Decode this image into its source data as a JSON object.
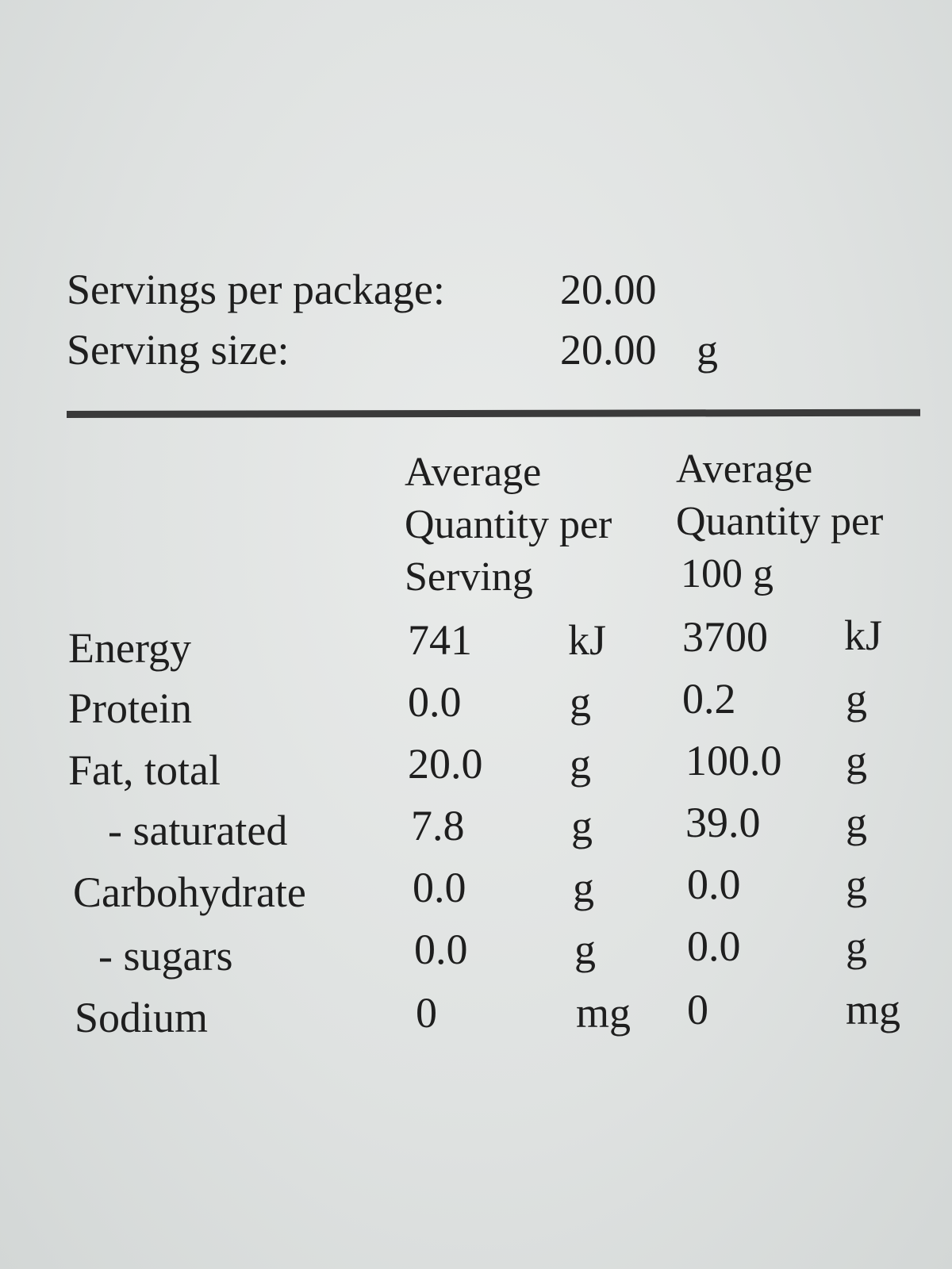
{
  "serving_info": {
    "servings_per_package_label": "Servings per package:",
    "servings_per_package_value": "20.00",
    "serving_size_label": "Serving size:",
    "serving_size_value": "20.00",
    "serving_size_unit": "g"
  },
  "table": {
    "headers": {
      "per_serving": [
        "Average",
        "Quantity per",
        "Serving"
      ],
      "per_100g": [
        "Average",
        "Quantity per",
        "100 g"
      ]
    },
    "rows": [
      {
        "label": "Energy",
        "serving": "741",
        "serving_unit": "kJ",
        "per100": "3700",
        "per100_unit": "kJ"
      },
      {
        "label": "Protein",
        "serving": "0.0",
        "serving_unit": "g",
        "per100": "0.2",
        "per100_unit": "g"
      },
      {
        "label": "Fat, total",
        "serving": "20.0",
        "serving_unit": "g",
        "per100": "100.0",
        "per100_unit": "g"
      },
      {
        "label": "- saturated",
        "serving": "7.8",
        "serving_unit": "g",
        "per100": "39.0",
        "per100_unit": "g"
      },
      {
        "label": "Carbohydrate",
        "serving": "0.0",
        "serving_unit": "g",
        "per100": "0.0",
        "per100_unit": "g"
      },
      {
        "label": "- sugars",
        "serving": "0.0",
        "serving_unit": "g",
        "per100": "0.0",
        "per100_unit": "g"
      },
      {
        "label": "Sodium",
        "serving": "0",
        "serving_unit": "mg",
        "per100": "0",
        "per100_unit": "mg"
      }
    ]
  }
}
